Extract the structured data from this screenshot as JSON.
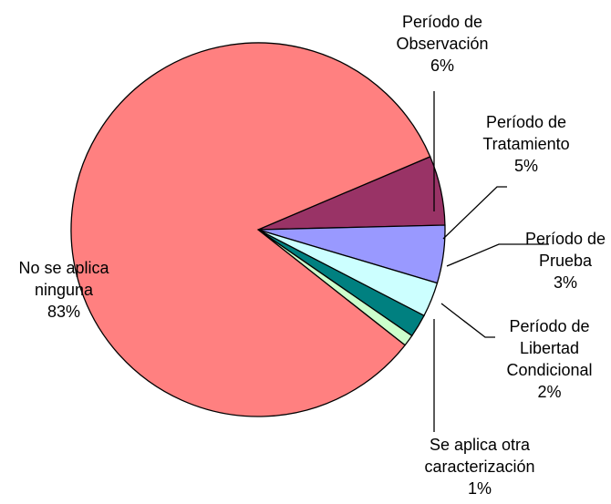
{
  "chart_data": {
    "type": "pie",
    "categories": [
      "Período de Observación",
      "Período de Tratamiento",
      "Período de Prueba",
      "Período de Libertad Condicional",
      "Se aplica otra caracterización",
      "No se aplica ninguna"
    ],
    "values": [
      6,
      5,
      3,
      2,
      1,
      83
    ],
    "value_labels": [
      "6%",
      "5%",
      "3%",
      "2%",
      "1%",
      "83%"
    ],
    "colors": [
      "#993366",
      "#9999ff",
      "#ccffff",
      "#008080",
      "#ccffcc",
      "#ff8080"
    ]
  }
}
